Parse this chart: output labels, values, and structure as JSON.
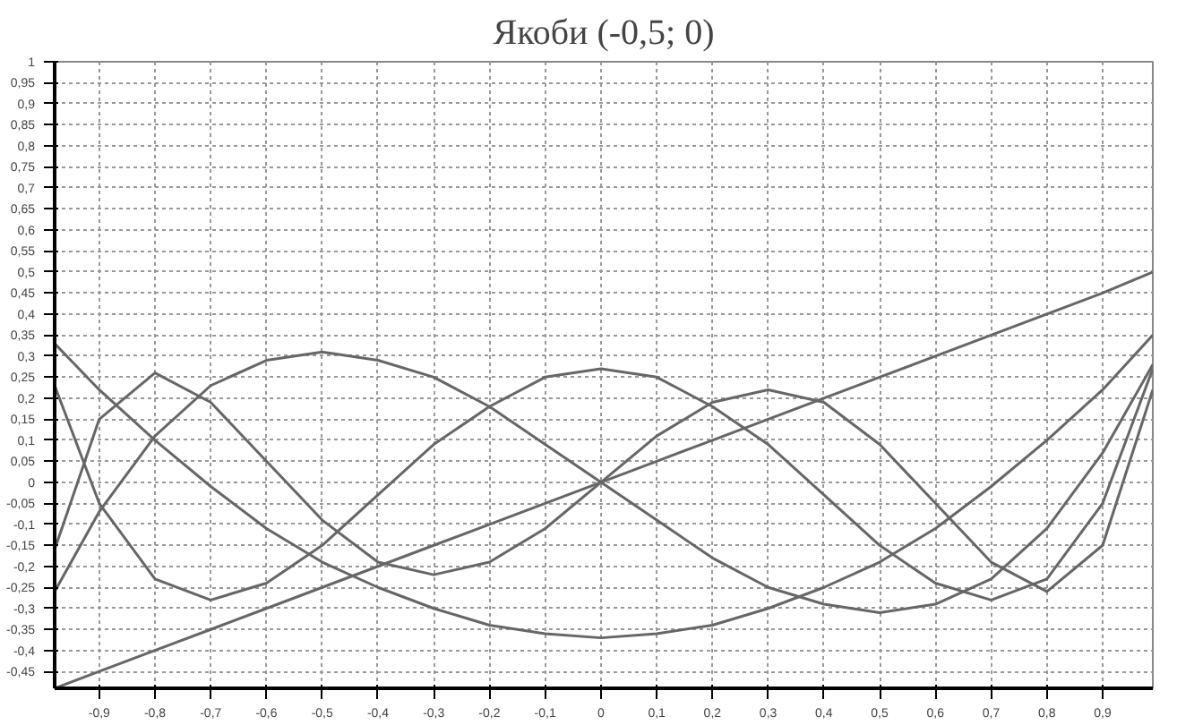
{
  "chart_data": {
    "type": "line",
    "title": "Якоби (-0,5; 0)",
    "x": [
      -0.98,
      -0.9,
      -0.8,
      -0.7,
      -0.6,
      -0.5,
      -0.4,
      -0.3,
      -0.2,
      -0.1,
      0,
      0.1,
      0.2,
      0.3,
      0.4,
      0.5,
      0.6,
      0.7,
      0.8,
      0.9,
      0.99
    ],
    "series": [
      {
        "color": "#666666",
        "values": [
          -0.49,
          -0.45,
          -0.4,
          -0.35,
          -0.3,
          -0.25,
          -0.2,
          -0.15,
          -0.1,
          -0.05,
          0,
          0.05,
          0.1,
          0.15,
          0.2,
          0.25,
          0.3,
          0.35,
          0.4,
          0.45,
          0.5
        ]
      },
      {
        "color": "#666666",
        "values": [
          0.33,
          0.22,
          0.1,
          -0.01,
          -0.11,
          -0.19,
          -0.25,
          -0.3,
          -0.34,
          -0.36,
          -0.37,
          -0.36,
          -0.34,
          -0.3,
          -0.25,
          -0.19,
          -0.11,
          -0.01,
          0.1,
          0.22,
          0.35
        ]
      },
      {
        "color": "#666666",
        "values": [
          -0.26,
          -0.07,
          0.11,
          0.23,
          0.29,
          0.31,
          0.29,
          0.25,
          0.18,
          0.09,
          0,
          -0.09,
          -0.18,
          -0.25,
          -0.29,
          -0.31,
          -0.29,
          -0.23,
          -0.11,
          0.07,
          0.28
        ]
      },
      {
        "color": "#666666",
        "values": [
          0.23,
          -0.05,
          -0.23,
          -0.28,
          -0.24,
          -0.15,
          -0.03,
          0.09,
          0.18,
          0.25,
          0.27,
          0.25,
          0.18,
          0.09,
          -0.03,
          -0.15,
          -0.24,
          -0.28,
          -0.23,
          -0.05,
          0.27
        ]
      },
      {
        "color": "#666666",
        "values": [
          -0.16,
          0.15,
          0.26,
          0.19,
          0.05,
          -0.09,
          -0.19,
          -0.22,
          -0.19,
          -0.11,
          0,
          0.11,
          0.19,
          0.22,
          0.19,
          0.09,
          -0.05,
          -0.19,
          -0.26,
          -0.15,
          0.22
        ]
      }
    ],
    "xlim": [
      -0.98,
      0.99
    ],
    "ylim": [
      -0.49,
      1
    ],
    "xticks": [
      {
        "value": -0.9,
        "label": "-0,9"
      },
      {
        "value": -0.8,
        "label": "-0,8"
      },
      {
        "value": -0.7,
        "label": "-0,7"
      },
      {
        "value": -0.6,
        "label": "-0,6"
      },
      {
        "value": -0.5,
        "label": "-0,5"
      },
      {
        "value": -0.4,
        "label": "-0,4"
      },
      {
        "value": -0.3,
        "label": "-0,3"
      },
      {
        "value": -0.2,
        "label": "-0,2"
      },
      {
        "value": -0.1,
        "label": "-0,1"
      },
      0,
      {
        "value": 0.1,
        "label": "0,1"
      },
      {
        "value": 0.2,
        "label": "0,2"
      },
      {
        "value": 0.3,
        "label": "0,3"
      },
      {
        "value": 0.4,
        "label": "0,4"
      },
      {
        "value": 0.5,
        "label": "0,5"
      },
      {
        "value": 0.6,
        "label": "0,6"
      },
      {
        "value": 0.7,
        "label": "0,7"
      },
      {
        "value": 0.8,
        "label": "0,8"
      },
      {
        "value": 0.9,
        "label": "0,9"
      }
    ],
    "yticks": [
      {
        "value": -0.45,
        "label": "-0,45"
      },
      {
        "value": -0.4,
        "label": "-0,4"
      },
      {
        "value": -0.35,
        "label": "-0,35"
      },
      {
        "value": -0.3,
        "label": "-0,3"
      },
      {
        "value": -0.25,
        "label": "-0,25"
      },
      {
        "value": -0.2,
        "label": "-0,2"
      },
      {
        "value": -0.15,
        "label": "-0,15"
      },
      {
        "value": -0.1,
        "label": "-0,1"
      },
      {
        "value": -0.05,
        "label": "-0,05"
      },
      0,
      {
        "value": 0.05,
        "label": "0,05"
      },
      {
        "value": 0.1,
        "label": "0,1"
      },
      {
        "value": 0.15,
        "label": "0,15"
      },
      {
        "value": 0.2,
        "label": "0,2"
      },
      {
        "value": 0.25,
        "label": "0,25"
      },
      {
        "value": 0.3,
        "label": "0,3"
      },
      {
        "value": 0.35,
        "label": "0,35"
      },
      {
        "value": 0.4,
        "label": "0,4"
      },
      {
        "value": 0.45,
        "label": "0,45"
      },
      {
        "value": 0.5,
        "label": "0,5"
      },
      {
        "value": 0.55,
        "label": "0,55"
      },
      {
        "value": 0.6,
        "label": "0,6"
      },
      {
        "value": 0.65,
        "label": "0,65"
      },
      {
        "value": 0.7,
        "label": "0,7"
      },
      {
        "value": 0.75,
        "label": "0,75"
      },
      {
        "value": 0.8,
        "label": "0,8"
      },
      {
        "value": 0.85,
        "label": "0,85"
      },
      {
        "value": 0.9,
        "label": "0,9"
      },
      {
        "value": 0.95,
        "label": "0,95"
      },
      1
    ],
    "grid": true,
    "marker": "none",
    "line_style": "solid"
  }
}
